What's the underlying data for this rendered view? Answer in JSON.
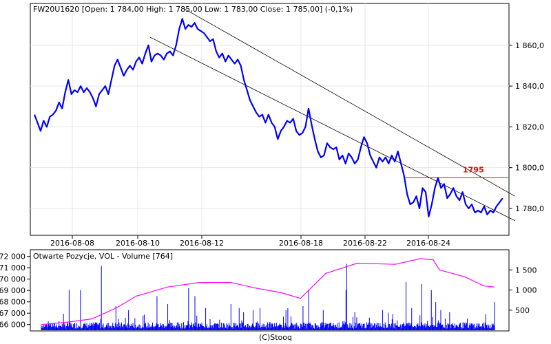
{
  "footer": "(C)Stooq",
  "chart_data": [
    {
      "type": "line",
      "title": "FW20U1620 [Open: 1 784,00  High: 1 785,00  Low: 1 783,00  Close: 1 785,00] (-0,1%)",
      "x_tick_labels": [
        "2016-08-08",
        "2016-08-10",
        "2016-08-12",
        "2016-08-18",
        "2016-08-22",
        "2016-08-24"
      ],
      "y_tick_labels": [
        "1 860,0",
        "1 840,0",
        "1 820,0",
        "1 800,0",
        "1 780,0"
      ],
      "y_ticks": [
        1860,
        1840,
        1820,
        1800,
        1780
      ],
      "ylim": [
        1767.5,
        1879.5
      ],
      "grid": true,
      "series": [
        {
          "color": "#0000ff",
          "points": [
            [
              0,
              1826
            ],
            [
              2,
              1822
            ],
            [
              4,
              1818
            ],
            [
              6,
              1823
            ],
            [
              8,
              1820
            ],
            [
              10,
              1825
            ],
            [
              12,
              1826
            ],
            [
              14,
              1828
            ],
            [
              16,
              1832
            ],
            [
              18,
              1829
            ],
            [
              20,
              1837
            ],
            [
              22,
              1843
            ],
            [
              24,
              1836
            ],
            [
              26,
              1838
            ],
            [
              28,
              1837
            ],
            [
              30,
              1840
            ],
            [
              32,
              1837
            ],
            [
              34,
              1839
            ],
            [
              36,
              1837
            ],
            [
              38,
              1834
            ],
            [
              40,
              1830
            ],
            [
              42,
              1836
            ],
            [
              44,
              1838
            ],
            [
              46,
              1840
            ],
            [
              48,
              1836
            ],
            [
              50,
              1843
            ],
            [
              52,
              1850
            ],
            [
              54,
              1853
            ],
            [
              56,
              1849
            ],
            [
              58,
              1845
            ],
            [
              60,
              1848
            ],
            [
              62,
              1850
            ],
            [
              64,
              1848
            ],
            [
              66,
              1852
            ],
            [
              68,
              1854
            ],
            [
              70,
              1851
            ],
            [
              72,
              1856
            ],
            [
              74,
              1860
            ],
            [
              76,
              1852
            ],
            [
              78,
              1855
            ],
            [
              80,
              1856
            ],
            [
              82,
              1855
            ],
            [
              84,
              1853
            ],
            [
              86,
              1856
            ],
            [
              88,
              1857
            ],
            [
              90,
              1855
            ],
            [
              92,
              1860
            ],
            [
              94,
              1868
            ],
            [
              96,
              1873
            ],
            [
              98,
              1868
            ],
            [
              100,
              1870
            ],
            [
              102,
              1869
            ],
            [
              104,
              1871
            ],
            [
              106,
              1868
            ],
            [
              108,
              1867
            ],
            [
              110,
              1866
            ],
            [
              112,
              1864
            ],
            [
              114,
              1862
            ],
            [
              116,
              1863
            ],
            [
              118,
              1857
            ],
            [
              120,
              1854
            ],
            [
              122,
              1856
            ],
            [
              124,
              1852
            ],
            [
              126,
              1855
            ],
            [
              128,
              1853
            ],
            [
              130,
              1851
            ],
            [
              132,
              1853
            ],
            [
              134,
              1850
            ],
            [
              136,
              1843
            ],
            [
              138,
              1838
            ],
            [
              140,
              1833
            ],
            [
              142,
              1830
            ],
            [
              144,
              1827
            ],
            [
              146,
              1825
            ],
            [
              148,
              1826
            ],
            [
              150,
              1822
            ],
            [
              152,
              1826
            ],
            [
              154,
              1822
            ],
            [
              156,
              1820
            ],
            [
              158,
              1814
            ],
            [
              160,
              1818
            ],
            [
              162,
              1820
            ],
            [
              164,
              1823
            ],
            [
              166,
              1822
            ],
            [
              168,
              1824
            ],
            [
              170,
              1818
            ],
            [
              172,
              1816
            ],
            [
              174,
              1817
            ],
            [
              176,
              1820
            ],
            [
              178,
              1829
            ],
            [
              180,
              1821
            ],
            [
              182,
              1814
            ],
            [
              184,
              1808
            ],
            [
              186,
              1805
            ],
            [
              188,
              1806
            ],
            [
              190,
              1812
            ],
            [
              192,
              1810
            ],
            [
              194,
              1809
            ],
            [
              196,
              1810
            ],
            [
              198,
              1804
            ],
            [
              200,
              1806
            ],
            [
              202,
              1802
            ],
            [
              204,
              1807
            ],
            [
              206,
              1805
            ],
            [
              208,
              1802
            ],
            [
              210,
              1804
            ],
            [
              212,
              1810
            ],
            [
              214,
              1815
            ],
            [
              216,
              1812
            ],
            [
              218,
              1806
            ],
            [
              220,
              1803
            ],
            [
              222,
              1800
            ],
            [
              224,
              1805
            ],
            [
              226,
              1803
            ],
            [
              228,
              1805
            ],
            [
              230,
              1802
            ],
            [
              232,
              1806
            ],
            [
              234,
              1803
            ],
            [
              236,
              1808
            ],
            [
              238,
              1802
            ],
            [
              240,
              1796
            ],
            [
              242,
              1787
            ],
            [
              244,
              1782
            ],
            [
              246,
              1783
            ],
            [
              248,
              1786
            ],
            [
              250,
              1780
            ],
            [
              252,
              1790
            ],
            [
              254,
              1788
            ],
            [
              256,
              1776
            ],
            [
              258,
              1782
            ],
            [
              260,
              1790
            ],
            [
              262,
              1795
            ],
            [
              264,
              1790
            ],
            [
              266,
              1792
            ],
            [
              268,
              1785
            ],
            [
              270,
              1787
            ],
            [
              272,
              1790
            ],
            [
              274,
              1786
            ],
            [
              276,
              1784
            ],
            [
              278,
              1788
            ],
            [
              280,
              1782
            ],
            [
              282,
              1780
            ],
            [
              284,
              1782
            ],
            [
              286,
              1778
            ],
            [
              288,
              1779
            ],
            [
              290,
              1778
            ],
            [
              292,
              1781
            ],
            [
              294,
              1777
            ],
            [
              296,
              1779
            ],
            [
              298,
              1778
            ],
            [
              300,
              1781
            ],
            [
              302,
              1783
            ],
            [
              304,
              1785
            ]
          ]
        }
      ],
      "reference_line": {
        "value": 1795,
        "label": "1795",
        "color": "#ff0000",
        "from": 240,
        "to": 312
      },
      "channel_lines": [
        {
          "from": [
            75,
            1864
          ],
          "to": [
            312,
            1774
          ],
          "color": "#000000"
        },
        {
          "from": [
            97,
            1878
          ],
          "to": [
            312,
            1786
          ],
          "color": "#000000"
        }
      ],
      "x_count": 305
    },
    {
      "type": "bar",
      "title": "Otwarte Pozycje, VOL - Volume [764]",
      "y_tick_labels": [
        "500",
        "1 000",
        "1 500"
      ],
      "y_ticks": [
        500,
        1000,
        1500
      ],
      "ylim": [
        0,
        1950
      ],
      "oi_tick_labels": [
        "72 000",
        "71 000",
        "70 000",
        "69 000",
        "68 000",
        "67 000",
        "66 000"
      ],
      "oi_ticks": [
        72000,
        71000,
        70000,
        69000,
        68000,
        67000,
        66000
      ],
      "oi_lim": [
        65500,
        72400
      ],
      "series": [
        {
          "name": "VOL",
          "color": "#0000ff",
          "spikes": [
            [
              44,
              1000
            ],
            [
              62,
              1000
            ],
            [
              95,
              1600
            ],
            [
              183,
              850
            ],
            [
              233,
              1050
            ],
            [
              346,
              550
            ],
            [
              387,
              500
            ],
            [
              390,
              550
            ],
            [
              423,
              1000
            ],
            [
              482,
              1000
            ],
            [
              483,
              1650
            ],
            [
              577,
              1200
            ],
            [
              602,
              1150
            ],
            [
              617,
              1000
            ],
            [
              624,
              700
            ],
            [
              717,
              700
            ],
            [
              118,
              600
            ],
            [
              138,
              500
            ],
            [
              200,
              650
            ],
            [
              243,
              850
            ],
            [
              260,
              550
            ],
            [
              300,
              650
            ],
            [
              313,
              550
            ],
            [
              320,
              450
            ],
            [
              335,
              500
            ],
            [
              414,
              600
            ],
            [
              446,
              500
            ],
            [
              496,
              450
            ],
            [
              540,
              500
            ],
            [
              556,
              400
            ],
            [
              586,
              550
            ],
            [
              632,
              500
            ],
            [
              646,
              450
            ],
            [
              703,
              400
            ]
          ]
        },
        {
          "name": "Otwarte Pozycje",
          "color": "#ff00ff",
          "points": [
            [
              0,
              66000
            ],
            [
              40,
              66200
            ],
            [
              80,
              66500
            ],
            [
              120,
              67500
            ],
            [
              150,
              68500
            ],
            [
              200,
              69300
            ],
            [
              250,
              69700
            ],
            [
              300,
              69700
            ],
            [
              340,
              69200
            ],
            [
              380,
              68800
            ],
            [
              410,
              68300
            ],
            [
              450,
              70500
            ],
            [
              500,
              71400
            ],
            [
              560,
              71300
            ],
            [
              600,
              71800
            ],
            [
              620,
              71700
            ],
            [
              630,
              70800
            ],
            [
              670,
              70200
            ],
            [
              700,
              69400
            ],
            [
              717,
              69300
            ]
          ]
        }
      ],
      "x_count": 717
    }
  ]
}
